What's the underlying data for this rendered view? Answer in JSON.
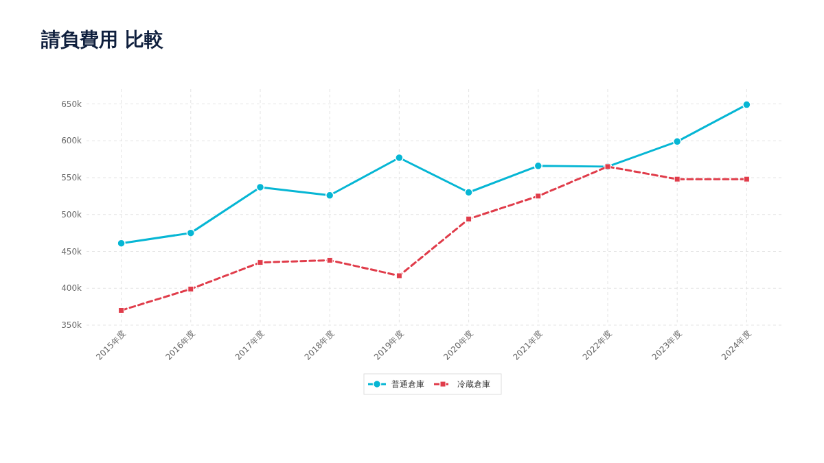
{
  "chart_data": {
    "type": "line",
    "title": "請負費用 比較",
    "categories": [
      "2015年度",
      "2016年度",
      "2017年度",
      "2018年度",
      "2019年度",
      "2020年度",
      "2021年度",
      "2022年度",
      "2023年度",
      "2024年度"
    ],
    "series": [
      {
        "name": "普通倉庫",
        "color": "#06b6d4",
        "marker": "circle",
        "line_style": "solid",
        "values": [
          461,
          475,
          537,
          526,
          577,
          530,
          566,
          565,
          599,
          649
        ]
      },
      {
        "name": "冷蔵倉庫",
        "color": "#e03c4a",
        "marker": "square",
        "line_style": "dashed",
        "values": [
          370,
          399,
          435,
          438,
          417,
          494,
          525,
          565,
          548,
          548
        ]
      }
    ],
    "ylim": [
      350,
      670
    ],
    "yticks": [
      {
        "value": 350,
        "label": "350k"
      },
      {
        "value": 400,
        "label": "400k"
      },
      {
        "value": 450,
        "label": "450k"
      },
      {
        "value": 500,
        "label": "500k"
      },
      {
        "value": 550,
        "label": "550k"
      },
      {
        "value": 600,
        "label": "600k"
      },
      {
        "value": 650,
        "label": "650k"
      }
    ],
    "grid": true,
    "legend": "bottom"
  }
}
